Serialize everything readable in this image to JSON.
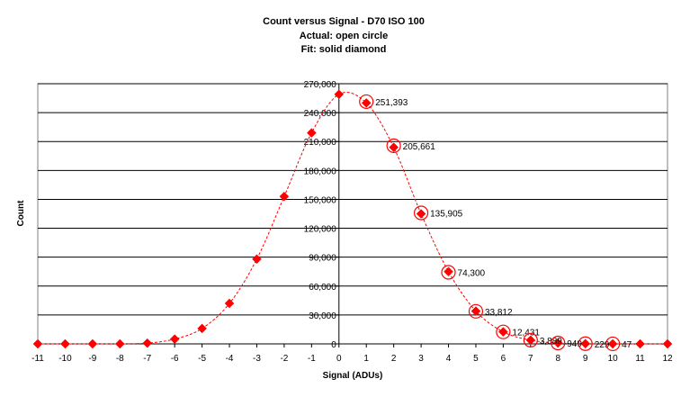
{
  "chart_data": {
    "type": "scatter",
    "title_lines": [
      "Count versus Signal - D70 ISO 100",
      "Actual: open circle",
      "Fit: solid diamond"
    ],
    "xlabel": "Signal (ADUs)",
    "ylabel": "Count",
    "xlim": [
      -11,
      12
    ],
    "ylim": [
      0,
      270000
    ],
    "x_ticks": [
      -11,
      -10,
      -9,
      -8,
      -7,
      -6,
      -5,
      -4,
      -3,
      -2,
      -1,
      0,
      1,
      2,
      3,
      4,
      5,
      6,
      7,
      8,
      9,
      10,
      11,
      12
    ],
    "y_ticks": [
      "0",
      "30,000",
      "60,000",
      "90,000",
      "120,000",
      "150,000",
      "180,000",
      "210,000",
      "240,000",
      "270,000"
    ],
    "y_tick_values": [
      0,
      30000,
      60000,
      90000,
      120000,
      150000,
      180000,
      210000,
      240000,
      270000
    ],
    "grid": true,
    "colors": {
      "fit": "#ff0000",
      "actual": "#ff0000",
      "grid": "#000000",
      "plot_bg": "#ffffff"
    },
    "series": [
      {
        "name": "Actual",
        "marker": "open-circle",
        "x": [
          1,
          2,
          3,
          4,
          5,
          6,
          7,
          8,
          9,
          10
        ],
        "y": [
          251393,
          205661,
          135905,
          74300,
          33812,
          12431,
          3889,
          949,
          229,
          47
        ],
        "labels": [
          "251,393",
          "205,661",
          "135,905",
          "74,300",
          "33,812",
          "12,431",
          "3,889",
          "949",
          "229",
          "47"
        ]
      },
      {
        "name": "Fit",
        "marker": "solid-diamond",
        "x": [
          -11,
          -10,
          -9,
          -8,
          -7,
          -6,
          -5,
          -4,
          -3,
          -2,
          -1,
          0,
          1,
          2,
          3,
          4,
          5,
          6,
          7,
          8,
          9,
          10,
          11,
          12
        ],
        "y": [
          0,
          0,
          0,
          0,
          800,
          5000,
          16000,
          42000,
          88000,
          153000,
          219000,
          259000,
          250000,
          204000,
          135000,
          75000,
          34000,
          12500,
          3900,
          900,
          200,
          40,
          0,
          0
        ]
      }
    ]
  }
}
